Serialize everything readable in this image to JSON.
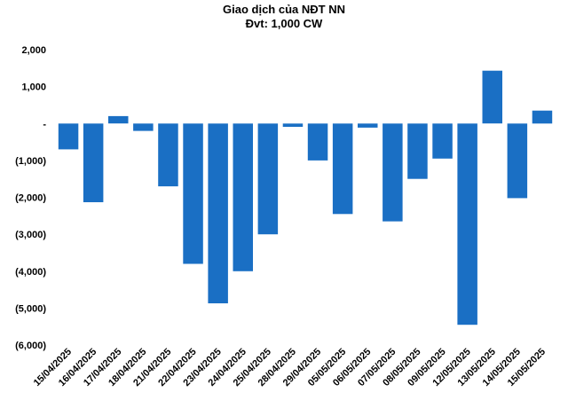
{
  "chart_data": {
    "type": "bar",
    "title": "Giao dịch của NĐT NN",
    "subtitle": "Đvt: 1,000 CW",
    "categories": [
      "15/04/2025",
      "16/04/2025",
      "17/04/2025",
      "18/04/2025",
      "21/04/2025",
      "22/04/2025",
      "23/04/2025",
      "24/04/2025",
      "25/04/2025",
      "28/04/2025",
      "29/04/2025",
      "05/05/2025",
      "06/05/2025",
      "07/05/2025",
      "08/05/2025",
      "09/05/2025",
      "12/05/2025",
      "13/05/2025",
      "14/05/2025",
      "15/05/2025"
    ],
    "values": [
      -700,
      -2130,
      200,
      -200,
      -1700,
      -3800,
      -4870,
      -4000,
      -3000,
      -90,
      -1000,
      -2450,
      -110,
      -2650,
      -1500,
      -950,
      -5450,
      1430,
      -2020,
      350
    ],
    "ylim": [
      -6000,
      2000
    ],
    "yticks": [
      2000,
      1000,
      0,
      -1000,
      -2000,
      -3000,
      -4000,
      -5000,
      -6000
    ],
    "ytick_labels": [
      "2,000",
      "1,000",
      "-",
      "(1,000)",
      "(2,000)",
      "(3,000)",
      "(4,000)",
      "(5,000)",
      "(6,000)"
    ],
    "bar_color": "#1a6fc4",
    "grid": false,
    "legend": "none"
  }
}
